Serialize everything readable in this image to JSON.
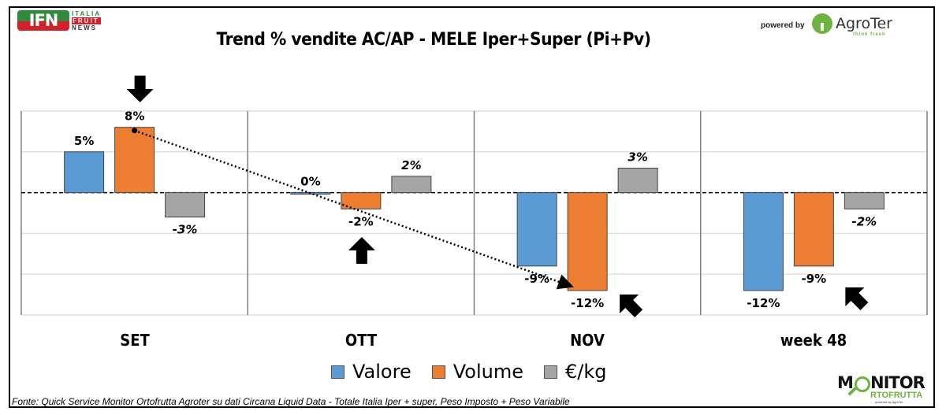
{
  "header": {
    "title": "Trend % vendite AC/AP - MELE  Iper+Super (Pi+Pv)",
    "ifn_logo": {
      "mark": "IFN",
      "line1": "ITALIA",
      "line2": "FRUIT",
      "line3": "NEWS"
    },
    "powered_by": "powered by",
    "agroter_logo": {
      "name": "AgroTer",
      "tagline": "think fresh"
    }
  },
  "footer": {
    "source": "Fonte: Quick Service Monitor Ortofrutta Agroter su dati Circana Liquid Data - Totale Italia Iper + super, Peso Imposto + Peso Variabile",
    "monitor_logo": {
      "m": "M",
      "nitor": "NITOR",
      "orto": "RTOFRUTTA",
      "sub": "powered by AgroTer"
    }
  },
  "colors": {
    "valore": "#5b9bd5",
    "volume": "#ed7d31",
    "prezzo": "#a5a5a5"
  },
  "chart_data": {
    "type": "bar",
    "title": "Trend % vendite AC/AP - MELE  Iper+Super (Pi+Pv)",
    "xlabel": "",
    "ylabel": "",
    "ylim": [
      -15,
      10
    ],
    "grid": true,
    "legend_position": "bottom",
    "categories": [
      "SET",
      "OTT",
      "NOV",
      "week 48"
    ],
    "series": [
      {
        "name": "Valore",
        "values": [
          5,
          0,
          -9,
          -12
        ],
        "labels": [
          "5%",
          "0%",
          "-9%",
          "-12%"
        ]
      },
      {
        "name": "Volume",
        "values": [
          8,
          -2,
          -12,
          -9
        ],
        "labels": [
          "8%",
          "-2%",
          "-12%",
          "-9%"
        ]
      },
      {
        "name": "€/kg",
        "values": [
          -3,
          2,
          3,
          -2
        ],
        "labels": [
          "-3%",
          "2%",
          "3%",
          "-2%"
        ]
      }
    ],
    "annotations": [
      {
        "type": "arrow-down",
        "target": "SET Volume"
      },
      {
        "type": "arrow-up",
        "target": "OTT Volume"
      },
      {
        "type": "arrow-up-left",
        "target": "NOV Volume"
      },
      {
        "type": "arrow-up-left",
        "target": "week 48 Volume"
      },
      {
        "type": "dotted-trend-arrow",
        "from": "SET Volume",
        "to": "NOV Volume"
      }
    ]
  }
}
